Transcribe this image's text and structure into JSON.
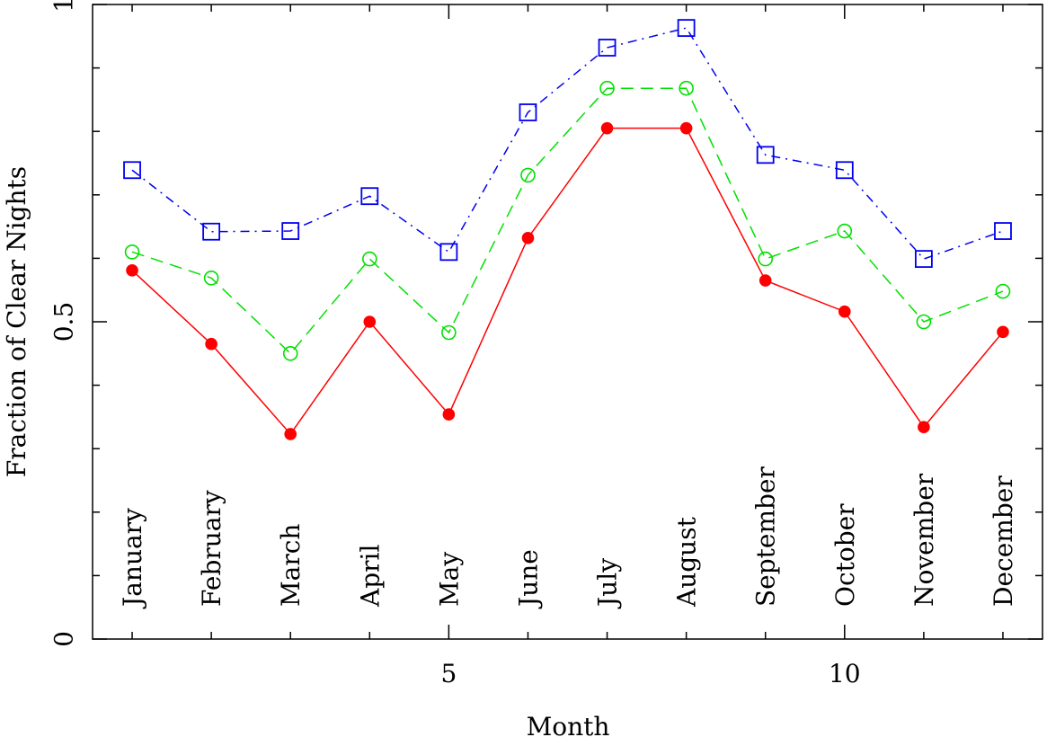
{
  "chart_data": {
    "type": "line",
    "x_label": "Month",
    "y_label": "Fraction of Clear Nights",
    "x": [
      1,
      2,
      3,
      4,
      5,
      6,
      7,
      8,
      9,
      10,
      11,
      12
    ],
    "categories": [
      "January",
      "February",
      "March",
      "April",
      "May",
      "June",
      "July",
      "August",
      "September",
      "October",
      "November",
      "December"
    ],
    "series": [
      {
        "color": "#ff0000",
        "marker": "filled-circle",
        "dash": "solid",
        "values": [
          0.581,
          0.465,
          0.323,
          0.5,
          0.354,
          0.632,
          0.805,
          0.805,
          0.565,
          0.516,
          0.334,
          0.484
        ]
      },
      {
        "color": "#00e000",
        "marker": "open-circle",
        "dash": "dashed",
        "values": [
          0.61,
          0.569,
          0.45,
          0.599,
          0.483,
          0.731,
          0.868,
          0.868,
          0.599,
          0.643,
          0.5,
          0.548
        ]
      },
      {
        "color": "#0000ee",
        "marker": "open-square",
        "dash": "dash-dot",
        "values": [
          0.739,
          0.642,
          0.643,
          0.698,
          0.61,
          0.83,
          0.932,
          0.963,
          0.763,
          0.739,
          0.599,
          0.643
        ]
      }
    ],
    "xlim": [
      0.5,
      12.5
    ],
    "xticks": [
      5,
      10
    ],
    "xticks_minor": [
      1,
      2,
      3,
      4,
      6,
      7,
      8,
      9,
      11,
      12
    ],
    "ylim": [
      0,
      1
    ],
    "yticks": [
      0,
      0.5,
      1
    ],
    "yticks_minor": [
      0.1,
      0.2,
      0.3,
      0.4,
      0.6,
      0.7,
      0.8,
      0.9
    ]
  }
}
